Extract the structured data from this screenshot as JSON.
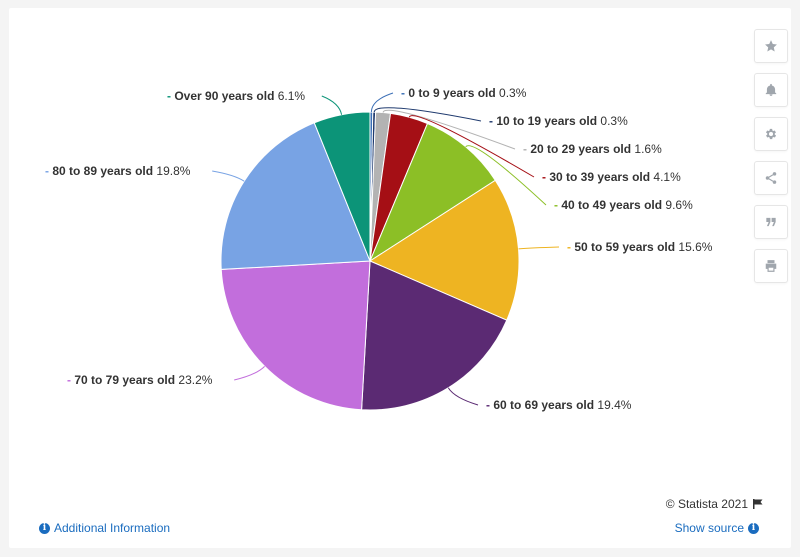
{
  "chart_data": {
    "type": "pie",
    "slices": [
      {
        "label": "0 to 9 years old",
        "value": 0.3,
        "value_label": "0.3%",
        "color": "#3b6fb6"
      },
      {
        "label": "10 to 19 years old",
        "value": 0.3,
        "value_label": "0.3%",
        "color": "#1f3a6e"
      },
      {
        "label": "20 to 29 years old",
        "value": 1.6,
        "value_label": "1.6%",
        "color": "#b3b3b3"
      },
      {
        "label": "30 to 39 years old",
        "value": 4.1,
        "value_label": "4.1%",
        "color": "#a50f15"
      },
      {
        "label": "40 to 49 years old",
        "value": 9.6,
        "value_label": "9.6%",
        "color": "#8cbf26"
      },
      {
        "label": "50 to 59 years old",
        "value": 15.6,
        "value_label": "15.6%",
        "color": "#eeb422"
      },
      {
        "label": "60 to 69 years old",
        "value": 19.4,
        "value_label": "19.4%",
        "color": "#5b2a73"
      },
      {
        "label": "70 to 79 years old",
        "value": 23.2,
        "value_label": "23.2%",
        "color": "#c26edc"
      },
      {
        "label": "80 to 89 years old",
        "value": 19.8,
        "value_label": "19.8%",
        "color": "#78a3e4"
      },
      {
        "label": "Over 90 years old",
        "value": 6.1,
        "value_label": "6.1%",
        "color": "#0c9478"
      }
    ]
  },
  "toolbar": {
    "icons": [
      "star-icon",
      "bell-icon",
      "gear-icon",
      "share-icon",
      "quote-icon",
      "print-icon"
    ]
  },
  "footer": {
    "copyright": "© Statista 2021",
    "additional_info": "Additional Information",
    "show_source": "Show source"
  }
}
